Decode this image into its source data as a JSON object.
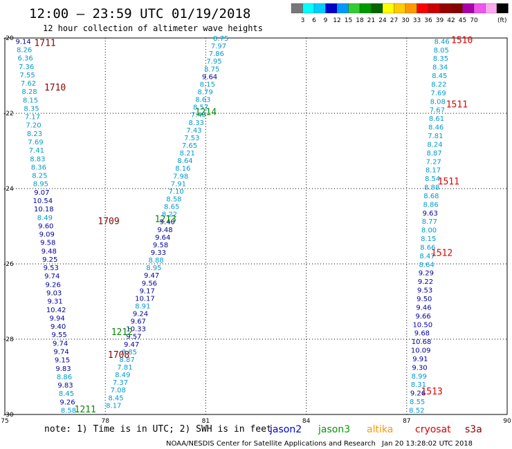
{
  "title": "12:00 – 23:59 UTC 01/19/2018",
  "subtitle": "12 hour collection of altimeter wave heights",
  "colorbar": {
    "colors": [
      "#777777",
      "#00ffff",
      "#00ccff",
      "#0000cc",
      "#0099ff",
      "#33cc33",
      "#009900",
      "#006600",
      "#ffff00",
      "#ffcc00",
      "#ff9900",
      "#ff0000",
      "#cc0000",
      "#990000",
      "#880000",
      "#aa00aa",
      "#ee55ee",
      "#ffaaee",
      "#000000"
    ],
    "labels": [
      "3",
      "6",
      "9",
      "12",
      "15",
      "18",
      "21",
      "24",
      "27",
      "30",
      "33",
      "36",
      "39",
      "42",
      "45",
      "70"
    ],
    "unit": "(ft)"
  },
  "chart_data": {
    "type": "scatter",
    "title": "12:00 – 23:59 UTC 01/19/2018",
    "subtitle": "12 hour collection of altimeter wave heights",
    "xlim": [
      75,
      90
    ],
    "ylim": [
      -30,
      -20
    ],
    "x_ticks": [
      "75",
      "78",
      "81",
      "84",
      "87",
      "90"
    ],
    "y_ticks": [
      "-20",
      "-22",
      "-24",
      "-26",
      "-28",
      "-30"
    ],
    "grid": true,
    "series": [
      {
        "name": "track_1708_1711",
        "start": [
          75.55,
          -20.08
        ],
        "end": [
          76.9,
          -29.88
        ],
        "values": [
          {
            "v": "9.14",
            "c": "#000099"
          },
          {
            "v": "8.26",
            "c": "#0099cc"
          },
          {
            "v": "6.36",
            "c": "#0099cc"
          },
          {
            "v": "7.36",
            "c": "#0099cc"
          },
          {
            "v": "7.55",
            "c": "#0099cc"
          },
          {
            "v": "7.62",
            "c": "#0099cc"
          },
          {
            "v": "8.28",
            "c": "#0099cc"
          },
          {
            "v": "8.15",
            "c": "#0099cc"
          },
          {
            "v": "8.35",
            "c": "#0099cc"
          },
          {
            "v": "7.17",
            "c": "#0099cc"
          },
          {
            "v": "7.20",
            "c": "#0099cc"
          },
          {
            "v": "8.23",
            "c": "#0099cc"
          },
          {
            "v": "7.69",
            "c": "#0099cc"
          },
          {
            "v": "7.41",
            "c": "#0099cc"
          },
          {
            "v": "8.83",
            "c": "#0099cc"
          },
          {
            "v": "8.36",
            "c": "#0099cc"
          },
          {
            "v": "8.25",
            "c": "#0099cc"
          },
          {
            "v": "8.95",
            "c": "#0099cc"
          },
          {
            "v": "9.07",
            "c": "#000099"
          },
          {
            "v": "10.54",
            "c": "#000099"
          },
          {
            "v": "10.18",
            "c": "#000099"
          },
          {
            "v": "8.49",
            "c": "#0099cc"
          },
          {
            "v": "9.60",
            "c": "#000099"
          },
          {
            "v": "9.09",
            "c": "#000099"
          },
          {
            "v": "9.58",
            "c": "#000099"
          },
          {
            "v": "9.48",
            "c": "#000099"
          },
          {
            "v": "9.25",
            "c": "#000099"
          },
          {
            "v": "9.53",
            "c": "#000099"
          },
          {
            "v": "9.74",
            "c": "#000099"
          },
          {
            "v": "9.26",
            "c": "#000099"
          },
          {
            "v": "9.03",
            "c": "#000099"
          },
          {
            "v": "9.31",
            "c": "#000099"
          },
          {
            "v": "10.42",
            "c": "#000099"
          },
          {
            "v": "9.94",
            "c": "#000099"
          },
          {
            "v": "9.40",
            "c": "#000099"
          },
          {
            "v": "9.55",
            "c": "#000099"
          },
          {
            "v": "9.74",
            "c": "#000099"
          },
          {
            "v": "9.74",
            "c": "#000099"
          },
          {
            "v": "9.15",
            "c": "#000099"
          },
          {
            "v": "9.83",
            "c": "#000099"
          },
          {
            "v": "8.86",
            "c": "#0099cc"
          },
          {
            "v": "9.83",
            "c": "#000099"
          },
          {
            "v": "8.45",
            "c": "#0099cc"
          },
          {
            "v": "9.26",
            "c": "#000099"
          },
          {
            "v": "8.58",
            "c": "#0099cc"
          }
        ]
      },
      {
        "name": "track_1211_1214",
        "start": [
          81.45,
          -20.0
        ],
        "end": [
          78.25,
          -29.75
        ],
        "values": [
          {
            "v": "8.75",
            "c": "#0099cc"
          },
          {
            "v": "7.97",
            "c": "#0099cc"
          },
          {
            "v": "7.86",
            "c": "#0099cc"
          },
          {
            "v": "7.95",
            "c": "#0099cc"
          },
          {
            "v": "8.75",
            "c": "#0099cc"
          },
          {
            "v": "9.64",
            "c": "#000099"
          },
          {
            "v": "8.15",
            "c": "#0099cc"
          },
          {
            "v": "8.79",
            "c": "#0099cc"
          },
          {
            "v": "8.63",
            "c": "#0099cc"
          },
          {
            "v": "8.57",
            "c": "#0099cc"
          },
          {
            "v": "7.40",
            "c": "#0099cc"
          },
          {
            "v": "8.33",
            "c": "#0099cc"
          },
          {
            "v": "7.43",
            "c": "#0099cc"
          },
          {
            "v": "7.53",
            "c": "#0099cc"
          },
          {
            "v": "7.65",
            "c": "#0099cc"
          },
          {
            "v": "8.21",
            "c": "#0099cc"
          },
          {
            "v": "8.64",
            "c": "#0099cc"
          },
          {
            "v": "8.16",
            "c": "#0099cc"
          },
          {
            "v": "7.98",
            "c": "#0099cc"
          },
          {
            "v": "7.91",
            "c": "#0099cc"
          },
          {
            "v": "7.10",
            "c": "#0099cc"
          },
          {
            "v": "8.58",
            "c": "#0099cc"
          },
          {
            "v": "8.65",
            "c": "#0099cc"
          },
          {
            "v": "8.22",
            "c": "#0099cc"
          },
          {
            "v": "9.40",
            "c": "#000099"
          },
          {
            "v": "9.48",
            "c": "#000099"
          },
          {
            "v": "9.64",
            "c": "#000099"
          },
          {
            "v": "9.58",
            "c": "#000099"
          },
          {
            "v": "9.33",
            "c": "#000099"
          },
          {
            "v": "8.88",
            "c": "#0099cc"
          },
          {
            "v": "8.95",
            "c": "#0099cc"
          },
          {
            "v": "9.47",
            "c": "#000099"
          },
          {
            "v": "9.56",
            "c": "#000099"
          },
          {
            "v": "9.17",
            "c": "#000099"
          },
          {
            "v": "10.17",
            "c": "#000099"
          },
          {
            "v": "8.91",
            "c": "#0099cc"
          },
          {
            "v": "9.24",
            "c": "#000099"
          },
          {
            "v": "9.67",
            "c": "#000099"
          },
          {
            "v": "10.33",
            "c": "#000099"
          },
          {
            "v": "9.57",
            "c": "#000099"
          },
          {
            "v": "9.47",
            "c": "#000099"
          },
          {
            "v": "8.85",
            "c": "#0099cc"
          },
          {
            "v": "8.87",
            "c": "#0099cc"
          },
          {
            "v": "7.81",
            "c": "#0099cc"
          },
          {
            "v": "8.49",
            "c": "#0099cc"
          },
          {
            "v": "7.37",
            "c": "#0099cc"
          },
          {
            "v": "7.08",
            "c": "#0099cc"
          },
          {
            "v": "8.45",
            "c": "#0099cc"
          },
          {
            "v": "8.17",
            "c": "#0099cc"
          }
        ]
      },
      {
        "name": "track_1510_1513",
        "start": [
          88.05,
          -20.08
        ],
        "end": [
          87.3,
          -29.88
        ],
        "values": [
          {
            "v": "8.46",
            "c": "#0099cc"
          },
          {
            "v": "8.05",
            "c": "#0099cc"
          },
          {
            "v": "8.35",
            "c": "#0099cc"
          },
          {
            "v": "8.34",
            "c": "#0099cc"
          },
          {
            "v": "8.45",
            "c": "#0099cc"
          },
          {
            "v": "8.22",
            "c": "#0099cc"
          },
          {
            "v": "7.69",
            "c": "#0099cc"
          },
          {
            "v": "8.08",
            "c": "#0099cc"
          },
          {
            "v": "7.67",
            "c": "#0099cc"
          },
          {
            "v": "8.61",
            "c": "#0099cc"
          },
          {
            "v": "8.46",
            "c": "#0099cc"
          },
          {
            "v": "7.81",
            "c": "#0099cc"
          },
          {
            "v": "8.24",
            "c": "#0099cc"
          },
          {
            "v": "8.87",
            "c": "#0099cc"
          },
          {
            "v": "7.27",
            "c": "#0099cc"
          },
          {
            "v": "8.17",
            "c": "#0099cc"
          },
          {
            "v": "8.54",
            "c": "#0099cc"
          },
          {
            "v": "8.88",
            "c": "#0099cc"
          },
          {
            "v": "8.68",
            "c": "#0099cc"
          },
          {
            "v": "8.86",
            "c": "#0099cc"
          },
          {
            "v": "9.63",
            "c": "#000099"
          },
          {
            "v": "8.77",
            "c": "#0099cc"
          },
          {
            "v": "8.00",
            "c": "#0099cc"
          },
          {
            "v": "8.15",
            "c": "#0099cc"
          },
          {
            "v": "8.66",
            "c": "#0099cc"
          },
          {
            "v": "8.47",
            "c": "#0099cc"
          },
          {
            "v": "8.64",
            "c": "#0099cc"
          },
          {
            "v": "9.29",
            "c": "#000099"
          },
          {
            "v": "9.22",
            "c": "#000099"
          },
          {
            "v": "9.53",
            "c": "#000099"
          },
          {
            "v": "9.50",
            "c": "#000099"
          },
          {
            "v": "9.46",
            "c": "#000099"
          },
          {
            "v": "9.66",
            "c": "#000099"
          },
          {
            "v": "10.50",
            "c": "#000099"
          },
          {
            "v": "9.68",
            "c": "#000099"
          },
          {
            "v": "10.68",
            "c": "#000099"
          },
          {
            "v": "10.09",
            "c": "#000099"
          },
          {
            "v": "9.91",
            "c": "#000099"
          },
          {
            "v": "9.30",
            "c": "#000099"
          },
          {
            "v": "8.99",
            "c": "#0099cc"
          },
          {
            "v": "8.31",
            "c": "#0099cc"
          },
          {
            "v": "9.26",
            "c": "#000099"
          },
          {
            "v": "8.55",
            "c": "#0099cc"
          },
          {
            "v": "8.52",
            "c": "#0099cc"
          }
        ]
      }
    ],
    "time_labels": [
      {
        "text": "1711",
        "x": 76.2,
        "y": -20.12,
        "color": "#880000"
      },
      {
        "text": "1710",
        "x": 76.5,
        "y": -21.3,
        "color": "#880000"
      },
      {
        "text": "1709",
        "x": 78.1,
        "y": -24.85,
        "color": "#880000"
      },
      {
        "text": "1708",
        "x": 78.4,
        "y": -28.4,
        "color": "#880000"
      },
      {
        "text": "1214",
        "x": 81.0,
        "y": -21.95,
        "color": "#008800"
      },
      {
        "text": "1213",
        "x": 79.8,
        "y": -24.8,
        "color": "#008800"
      },
      {
        "text": "1212",
        "x": 78.5,
        "y": -27.8,
        "color": "#008800"
      },
      {
        "text": "1211",
        "x": 77.4,
        "y": -29.85,
        "color": "#008800"
      },
      {
        "text": "1510",
        "x": 88.65,
        "y": -20.05,
        "color": "#dd0000"
      },
      {
        "text": "1511",
        "x": 88.5,
        "y": -21.75,
        "color": "#dd0000"
      },
      {
        "text": "1511",
        "x": 88.25,
        "y": -23.8,
        "color": "#dd0000"
      },
      {
        "text": "1512",
        "x": 88.05,
        "y": -25.7,
        "color": "#dd0000"
      },
      {
        "text": "1513",
        "x": 87.75,
        "y": -29.38,
        "color": "#dd0000"
      }
    ]
  },
  "footer": {
    "note": "note: 1) Time is in UTC; 2) SWH is in feet",
    "legend": [
      {
        "text": "jason2",
        "color": "#0000cc"
      },
      {
        "text": "jason3",
        "color": "#009900"
      },
      {
        "text": "altika",
        "color": "#ff9900"
      },
      {
        "text": "cryosat",
        "color": "#dd0000"
      },
      {
        "text": "s3a",
        "color": "#880000"
      }
    ],
    "credit": "NOAA/NESDIS Center for Satellite Applications and Research",
    "date": "Jan 20 13:28:02 UTC 2018"
  }
}
